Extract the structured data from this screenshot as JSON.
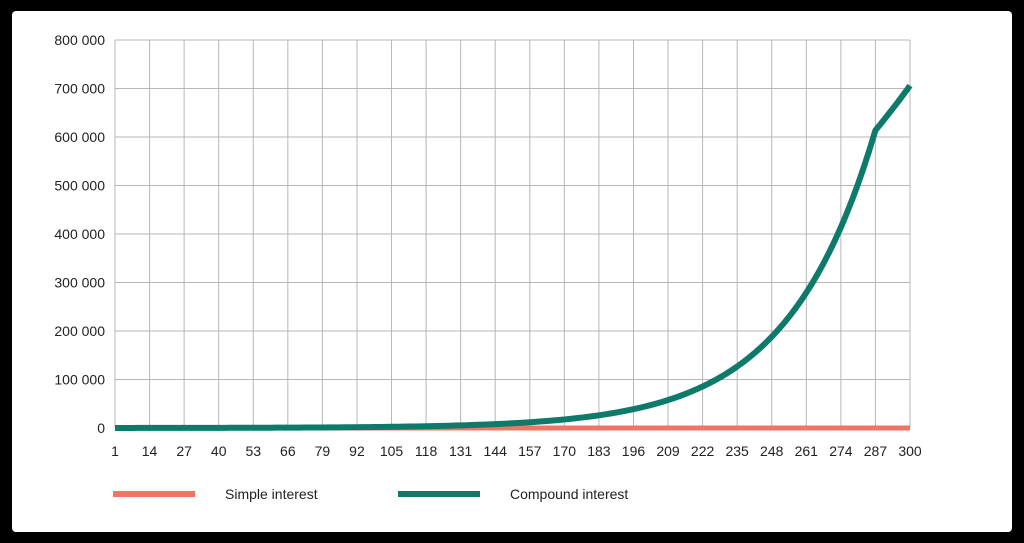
{
  "chart_data": {
    "type": "line",
    "title": "",
    "xlabel": "",
    "ylabel": "",
    "x_ticks": [
      "1",
      "14",
      "27",
      "40",
      "53",
      "66",
      "79",
      "92",
      "105",
      "118",
      "131",
      "144",
      "157",
      "170",
      "183",
      "196",
      "209",
      "222",
      "235",
      "248",
      "261",
      "274",
      "287",
      "300"
    ],
    "y_ticks": [
      "0",
      "100 000",
      "200 000",
      "300 000",
      "400 000",
      "500 000",
      "600 000",
      "700 000",
      "800 000"
    ],
    "xlim": [
      1,
      300
    ],
    "ylim": [
      0,
      800000
    ],
    "grid": true,
    "legend_position": "bottom-left",
    "series": [
      {
        "name": "Simple interest",
        "color": "#f07565",
        "x": [
          1,
          300
        ],
        "y": [
          0,
          0
        ]
      },
      {
        "name": "Compound interest",
        "color": "#0e7a6a",
        "x": [
          1,
          14,
          27,
          40,
          53,
          66,
          79,
          92,
          105,
          118,
          131,
          144,
          157,
          170,
          183,
          196,
          209,
          222,
          235,
          248,
          261,
          274,
          287,
          300
        ],
        "y": [
          105,
          156,
          231,
          343,
          508,
          754,
          1118,
          1658,
          2460,
          3648,
          5411,
          8026,
          11905,
          17659,
          26194,
          38855,
          57635,
          85492,
          126813,
          188104,
          279020,
          413876,
          613912,
          706000
        ]
      }
    ]
  }
}
